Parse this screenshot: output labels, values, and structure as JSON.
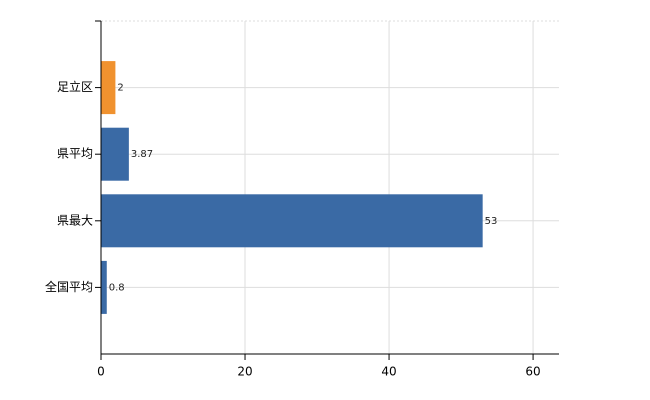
{
  "chart_data": {
    "type": "bar",
    "orientation": "horizontal",
    "categories": [
      "足立区",
      "県平均",
      "県最大",
      "全国平均"
    ],
    "values": [
      2,
      3.87,
      53,
      0.8
    ],
    "colors": [
      "#f0922f",
      "#3a6aa5",
      "#3a6aa5",
      "#3a6aa5"
    ],
    "xlim": [
      0,
      63.6
    ],
    "xticks": [
      0,
      20,
      40,
      60
    ],
    "grid": true
  }
}
